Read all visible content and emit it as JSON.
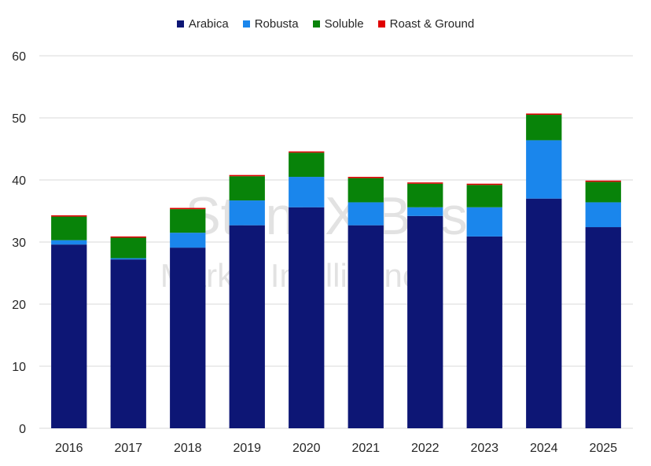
{
  "chart_data": {
    "type": "bar",
    "stacked": true,
    "categories": [
      "2016",
      "2017",
      "2018",
      "2019",
      "2020",
      "2021",
      "2022",
      "2023",
      "2024",
      "2025"
    ],
    "series": [
      {
        "name": "Arabica",
        "color": "#0d1675",
        "values": [
          29.6,
          27.2,
          29.1,
          32.7,
          35.6,
          32.7,
          34.2,
          30.9,
          37.0,
          32.4
        ]
      },
      {
        "name": "Robusta",
        "color": "#1a86ec",
        "values": [
          0.7,
          0.2,
          2.4,
          4.0,
          4.9,
          3.7,
          1.4,
          4.7,
          9.4,
          4.0
        ]
      },
      {
        "name": "Soluble",
        "color": "#088309",
        "values": [
          3.8,
          3.3,
          3.8,
          3.9,
          3.9,
          3.9,
          3.8,
          3.6,
          4.1,
          3.3
        ]
      },
      {
        "name": "Roast & Ground",
        "color": "#e00000",
        "values": [
          0.2,
          0.2,
          0.2,
          0.2,
          0.2,
          0.2,
          0.2,
          0.2,
          0.2,
          0.2
        ]
      }
    ],
    "title": "",
    "xlabel": "",
    "ylabel": "",
    "ylim": [
      0,
      60
    ],
    "yticks": [
      "0",
      "10",
      "20",
      "30",
      "40",
      "50",
      "60"
    ],
    "grid": true,
    "legend_position": "top-center"
  },
  "watermark": {
    "line1": "StoneX Bus",
    "line2": "Market Intelligence"
  }
}
